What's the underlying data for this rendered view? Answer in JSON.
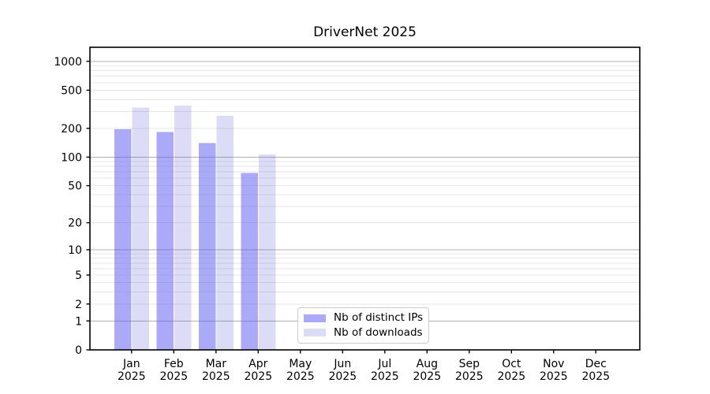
{
  "chart_data": {
    "type": "bar",
    "title": "DriverNet 2025",
    "categories": [
      "Jan",
      "Feb",
      "Mar",
      "Apr",
      "May",
      "Jun",
      "Jul",
      "Aug",
      "Sep",
      "Oct",
      "Nov",
      "Dec"
    ],
    "category_year": "2025",
    "series": [
      {
        "name": "Nb of distinct IPs",
        "color": "rgba(85,85,242,0.5)",
        "values": [
          195,
          184,
          140,
          68,
          0,
          0,
          0,
          0,
          0,
          0,
          0,
          0
        ]
      },
      {
        "name": "Nb of downloads",
        "color": "rgba(80,80,215,0.2)",
        "values": [
          330,
          345,
          270,
          107,
          0,
          0,
          0,
          0,
          0,
          0,
          0,
          0
        ]
      }
    ],
    "xlabel": "",
    "ylabel": "",
    "yscale": "log1p",
    "ylim": [
      0,
      1400
    ],
    "y_ticks": [
      0,
      1,
      2,
      5,
      10,
      20,
      50,
      100,
      200,
      500,
      1000
    ],
    "y_major_gridlines": [
      1,
      10,
      100,
      1000
    ],
    "y_minor_gridlines": [
      2,
      3,
      4,
      5,
      6,
      7,
      8,
      9,
      20,
      30,
      40,
      50,
      60,
      70,
      80,
      90,
      200,
      300,
      400,
      500,
      600,
      700,
      800,
      900
    ],
    "grid": true,
    "legend_position": "lower center",
    "colors": {
      "axis": "#000000",
      "text": "#000000",
      "major_grid": "#b0b0b0",
      "minor_grid": "#e7e7e7",
      "legend_border": "#cccccc",
      "background": "#ffffff"
    }
  }
}
